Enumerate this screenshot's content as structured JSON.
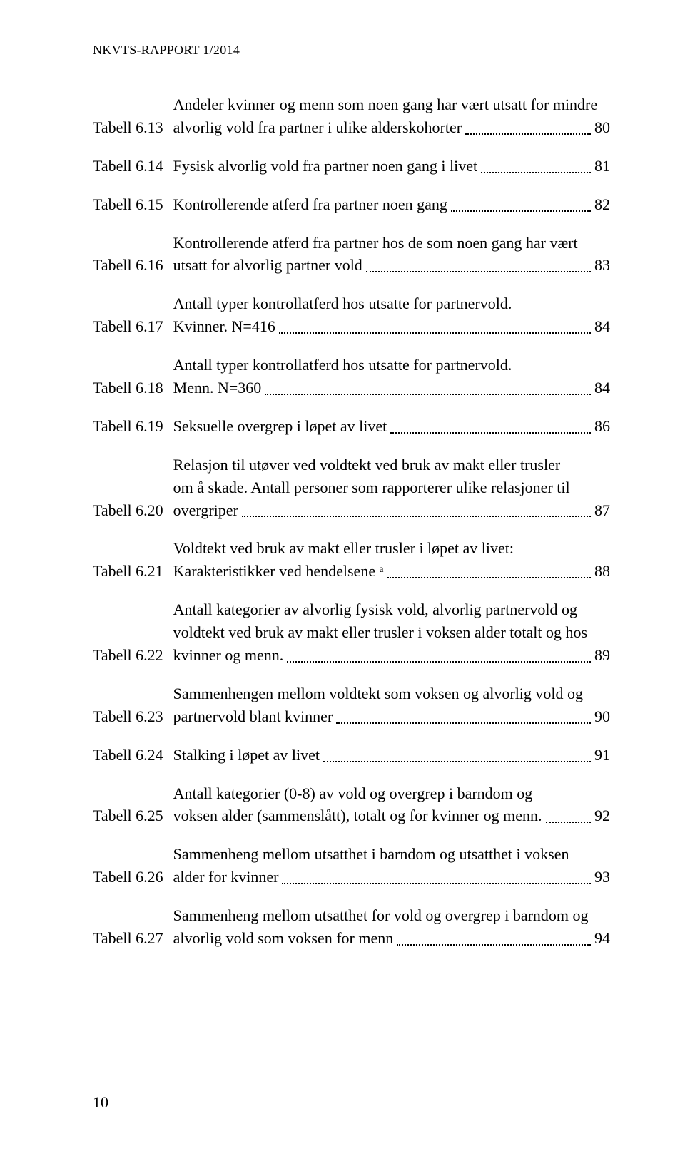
{
  "header": "NKVTS-RAPPORT 1/2014",
  "pageNumber": "10",
  "entries": [
    {
      "label": "Tabell 6.13",
      "lines": [
        "Andeler kvinner og menn som noen gang har vært utsatt for mindre"
      ],
      "lastLine": "alvorlig vold fra partner i ulike alderskohorter",
      "page": "80"
    },
    {
      "label": "Tabell 6.14",
      "lines": [],
      "lastLine": "Fysisk alvorlig vold fra partner noen gang i livet",
      "page": "81"
    },
    {
      "label": "Tabell 6.15",
      "lines": [],
      "lastLine": "Kontrollerende atferd fra partner noen gang",
      "page": "82"
    },
    {
      "label": "Tabell 6.16",
      "lines": [
        "Kontrollerende atferd fra partner hos de som noen gang har vært"
      ],
      "lastLine": "utsatt for alvorlig partner vold",
      "page": "83"
    },
    {
      "label": "Tabell 6.17",
      "lines": [
        "Antall typer kontrollatferd hos utsatte for partnervold."
      ],
      "lastLine": "Kvinner. N=416",
      "page": "84"
    },
    {
      "label": "Tabell 6.18",
      "lines": [
        "Antall typer kontrollatferd hos utsatte for partnervold."
      ],
      "lastLine": "Menn. N=360",
      "page": "84"
    },
    {
      "label": "Tabell 6.19",
      "lines": [],
      "lastLine": "Seksuelle overgrep i løpet av livet",
      "page": "86"
    },
    {
      "label": "Tabell 6.20",
      "lines": [
        "Relasjon til utøver ved voldtekt ved bruk av makt eller trusler",
        "om å skade. Antall personer som rapporterer ulike relasjoner til"
      ],
      "lastLine": "overgriper",
      "page": "87"
    },
    {
      "label": "Tabell 6.21",
      "lines": [
        "Voldtekt ved bruk av makt eller trusler i løpet av livet:"
      ],
      "lastLine": "Karakteristikker ved hendelsene ᵃ",
      "page": "88"
    },
    {
      "label": "Tabell 6.22",
      "lines": [
        "Antall kategorier av alvorlig fysisk vold, alvorlig partnervold og",
        "voldtekt ved bruk av makt eller trusler i voksen alder totalt og hos"
      ],
      "lastLine": "kvinner og menn.",
      "page": "89"
    },
    {
      "label": "Tabell 6.23",
      "lines": [
        "Sammenhengen mellom voldtekt som voksen og alvorlig vold og"
      ],
      "lastLine": "partnervold blant kvinner",
      "page": "90"
    },
    {
      "label": "Tabell 6.24",
      "lines": [],
      "lastLine": "Stalking i løpet av livet",
      "page": "91"
    },
    {
      "label": "Tabell 6.25",
      "lines": [
        "Antall kategorier (0-8) av vold og overgrep i barndom og"
      ],
      "lastLine": "voksen alder (sammenslått), totalt og for kvinner og menn.",
      "page": "92"
    },
    {
      "label": "Tabell 6.26",
      "lines": [
        "Sammenheng mellom utsatthet i barndom og utsatthet i voksen"
      ],
      "lastLine": " alder for kvinner",
      "page": "93"
    },
    {
      "label": "Tabell 6.27",
      "lines": [
        "Sammenheng mellom utsatthet for vold og overgrep i barndom og"
      ],
      "lastLine": "alvorlig vold som voksen for menn",
      "page": "94"
    }
  ]
}
